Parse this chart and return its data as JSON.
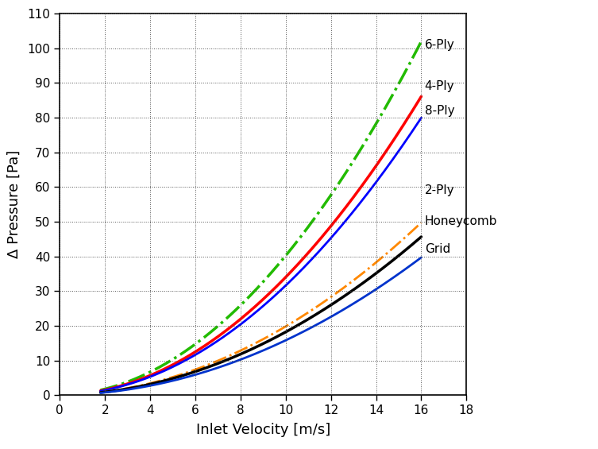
{
  "xlabel": "Inlet Velocity [m/s]",
  "ylabel": "Δ Pressure [Pa]",
  "xlim": [
    0,
    18
  ],
  "ylim": [
    0,
    110
  ],
  "xticks": [
    0,
    2,
    4,
    6,
    8,
    10,
    12,
    14,
    16,
    18
  ],
  "yticks": [
    0,
    10,
    20,
    30,
    40,
    50,
    60,
    70,
    80,
    90,
    100,
    110
  ],
  "curves": [
    {
      "label": "6-Ply",
      "color": "#22bb00",
      "linestyle": "-.",
      "linewidth": 2.5,
      "a": 0.0,
      "b": 0.22,
      "c": 0.395,
      "x_start": 1.8
    },
    {
      "label": "4-Ply",
      "color": "#ff0000",
      "linestyle": "-",
      "linewidth": 2.5,
      "a": 0.0,
      "b": 0.07,
      "c": 0.308,
      "x_start": 1.8
    },
    {
      "label": "8-Ply",
      "color": "#0000ff",
      "linestyle": "-",
      "linewidth": 2.0,
      "a": 0.0,
      "b": 0.1,
      "c": 0.285,
      "x_start": 1.8
    },
    {
      "label": "2-Ply",
      "color": "#ff8800",
      "linestyle": "-.",
      "linewidth": 2.0,
      "a": 0.0,
      "b": 0.07,
      "c": 0.183,
      "x_start": 1.8
    },
    {
      "label": "Honeycomb",
      "color": "#000000",
      "linestyle": "-",
      "linewidth": 2.5,
      "a": 0.0,
      "b": 0.07,
      "c": 0.165,
      "x_start": 1.8
    },
    {
      "label": "Grid",
      "color": "#0033cc",
      "linestyle": "-",
      "linewidth": 2.0,
      "a": 0.0,
      "b": 0.04,
      "c": 0.147,
      "x_start": 1.8
    }
  ],
  "legend_entries": [
    {
      "label": "6-Ply",
      "y": 101
    },
    {
      "label": "4-Ply",
      "y": 89
    },
    {
      "label": "8-Ply",
      "y": 82
    },
    {
      "label": "2-Ply",
      "y": 59
    },
    {
      "label": "Honeycomb",
      "y": 50
    },
    {
      "label": "Grid",
      "y": 42
    }
  ],
  "background_color": "#ffffff",
  "grid_color": "#555555",
  "grid_linestyle": ":",
  "grid_linewidth": 0.7,
  "tick_fontsize": 11,
  "label_fontsize": 13,
  "legend_fontsize": 11
}
